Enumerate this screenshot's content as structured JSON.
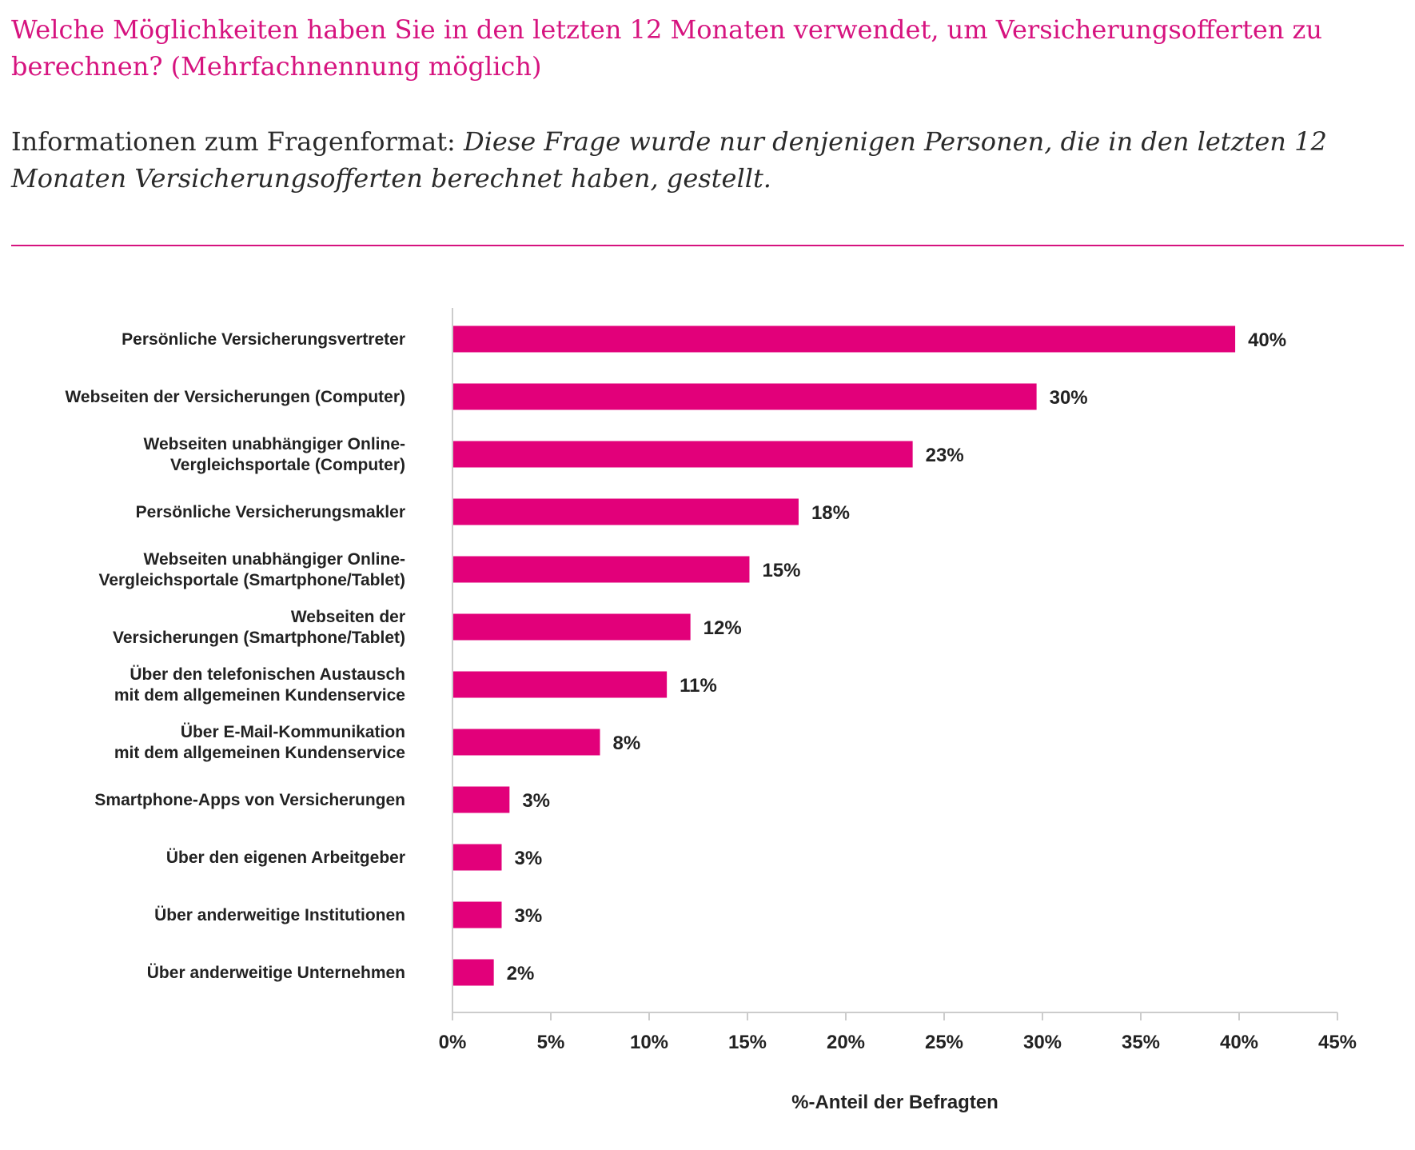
{
  "header": {
    "question": "Welche Möglichkeiten haben Sie in den letzten 12 Monaten verwendet, um Versicherungsofferten zu berechnen? (Mehrfachnennung möglich)",
    "info_label": "Informationen zum Fragenformat:",
    "info_text": "Diese Frage wurde nur denjenigen Personen, die in den letzten 12 Monaten Versicherungsofferten berechnet haben, gestellt."
  },
  "colors": {
    "accent": "#d6137f",
    "bar": "#e2007a",
    "axis": "#cccccc",
    "text": "#222222"
  },
  "chart_data": {
    "type": "bar",
    "orientation": "horizontal",
    "categories": [
      [
        "Persönliche Versicherungsvertreter"
      ],
      [
        "Webseiten der Versicherungen (Computer)"
      ],
      [
        "Webseiten unabhängiger Online-",
        "Vergleichsportale (Computer)"
      ],
      [
        "Persönliche Versicherungsmakler"
      ],
      [
        "Webseiten unabhängiger Online-",
        "Vergleichsportale (Smartphone/Tablet)"
      ],
      [
        "Webseiten der",
        "Versicherungen (Smartphone/Tablet)"
      ],
      [
        "Über den telefonischen Austausch",
        "mit dem allgemeinen Kundenservice"
      ],
      [
        "Über E-Mail-Kommunikation",
        "mit dem allgemeinen Kundenservice"
      ],
      [
        "Smartphone-Apps von Versicherungen"
      ],
      [
        "Über den eigenen Arbeitgeber"
      ],
      [
        "Über anderweitige Institutionen"
      ],
      [
        "Über anderweitige Unternehmen"
      ]
    ],
    "values": [
      39.8,
      29.7,
      23.4,
      17.6,
      15.1,
      12.1,
      10.9,
      7.5,
      2.9,
      2.5,
      2.5,
      2.1
    ],
    "value_labels": [
      "40%",
      "30%",
      "23%",
      "18%",
      "15%",
      "12%",
      "11%",
      "8%",
      "3%",
      "3%",
      "3%",
      "2%"
    ],
    "xlabel": "%-Anteil der Befragten",
    "xlim": [
      0,
      45
    ],
    "xticks": [
      0,
      5,
      10,
      15,
      20,
      25,
      30,
      35,
      40,
      45
    ],
    "xtick_labels": [
      "0%",
      "5%",
      "10%",
      "15%",
      "20%",
      "25%",
      "30%",
      "35%",
      "40%",
      "45%"
    ],
    "grid": false,
    "legend": "none"
  }
}
